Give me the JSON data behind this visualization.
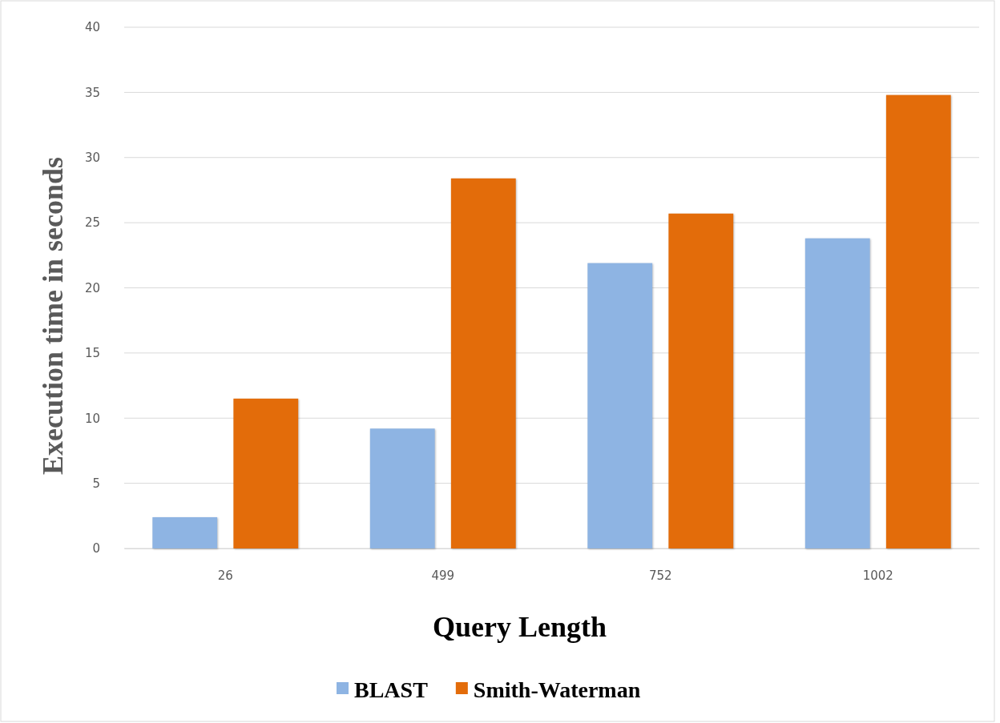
{
  "chart_data": {
    "type": "bar",
    "xlabel": "Query Length",
    "ylabel": "Execution time in seconds",
    "categories": [
      "26",
      "499",
      "752",
      "1002"
    ],
    "series": [
      {
        "name": "BLAST",
        "color": "#8eb4e3",
        "values": [
          2.4,
          9.2,
          21.9,
          23.8
        ]
      },
      {
        "name": "Smith-Waterman",
        "color": "#e36c0a",
        "values": [
          11.5,
          28.4,
          25.7,
          34.8
        ]
      }
    ],
    "ylim": [
      0,
      40
    ],
    "yticks": [
      0,
      5,
      10,
      15,
      20,
      25,
      30,
      35,
      40
    ],
    "grid": "y",
    "legend": "bottom"
  }
}
